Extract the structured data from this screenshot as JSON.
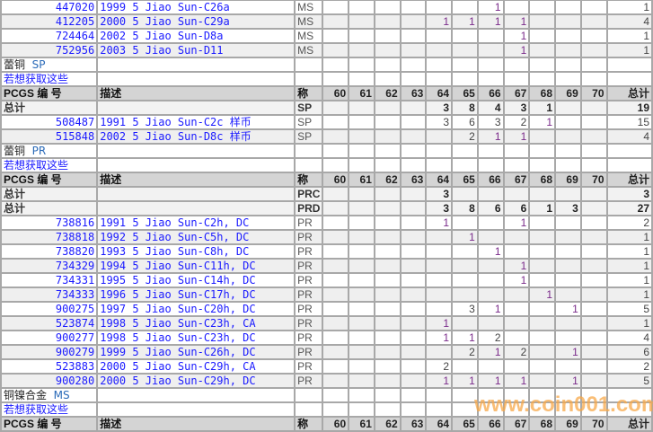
{
  "grade_headers": [
    "60",
    "61",
    "62",
    "63",
    "64",
    "65",
    "66",
    "67",
    "68",
    "69",
    "70"
  ],
  "header": {
    "code": "PCGS 编 号",
    "desc": "描述",
    "des": "称",
    "total": "总计"
  },
  "rows": [
    {
      "type": "item",
      "code": "447020",
      "desc": "1999 5 Jiao Sun-C26a",
      "des": "MS",
      "grades": {
        "66": "1"
      },
      "total": "1"
    },
    {
      "type": "item",
      "code": "412205",
      "desc": "2000 5 Jiao Sun-C29a",
      "des": "MS",
      "grades": {
        "64": "1",
        "65": "1",
        "66": "1",
        "67": "1"
      },
      "total": "4"
    },
    {
      "type": "item",
      "code": "724464",
      "desc": "2002 5 Jiao Sun-D8a",
      "des": "MS",
      "grades": {
        "67": "1"
      },
      "total": "1"
    },
    {
      "type": "item",
      "code": "752956",
      "desc": "2003 5 Jiao Sun-D11",
      "des": "MS",
      "grades": {
        "67": "1"
      },
      "total": "1"
    },
    {
      "type": "section",
      "metal": "蕾铜",
      "tag": "SP"
    },
    {
      "type": "link",
      "text": "若想获取这些"
    },
    {
      "type": "header"
    },
    {
      "type": "total",
      "label": "总计",
      "des": "SP",
      "grades": {
        "64": "3",
        "65": "8",
        "66": "4",
        "67": "3",
        "68": "1"
      },
      "total": "19"
    },
    {
      "type": "item",
      "code": "508487",
      "desc": "1991 5 Jiao Sun-C2c 样币",
      "des": "SP",
      "grades": {
        "64": "3",
        "65": "6",
        "66": "3",
        "67": "2",
        "68": "1"
      },
      "total": "15"
    },
    {
      "type": "item",
      "code": "515848",
      "desc": "2002 5 Jiao Sun-D8c 样币",
      "des": "SP",
      "grades": {
        "65": "2",
        "66": "1",
        "67": "1"
      },
      "total": "4"
    },
    {
      "type": "section",
      "metal": "蕾铜",
      "tag": "PR"
    },
    {
      "type": "link",
      "text": "若想获取这些"
    },
    {
      "type": "header"
    },
    {
      "type": "total",
      "label": "总计",
      "des": "PRC",
      "grades": {
        "64": "3"
      },
      "total": "3"
    },
    {
      "type": "total",
      "label": "总计",
      "des": "PRD",
      "grades": {
        "64": "3",
        "65": "8",
        "66": "6",
        "67": "6",
        "68": "1",
        "69": "3"
      },
      "total": "27"
    },
    {
      "type": "item",
      "code": "738816",
      "desc": "1991 5 Jiao Sun-C2h, DC",
      "des": "PR",
      "grades": {
        "64": "1",
        "67": "1"
      },
      "total": "2"
    },
    {
      "type": "item",
      "code": "738818",
      "desc": "1992 5 Jiao Sun-C5h, DC",
      "des": "PR",
      "grades": {
        "65": "1"
      },
      "total": "1"
    },
    {
      "type": "item",
      "code": "738820",
      "desc": "1993 5 Jiao Sun-C8h, DC",
      "des": "PR",
      "grades": {
        "66": "1"
      },
      "total": "1"
    },
    {
      "type": "item",
      "code": "734329",
      "desc": "1994 5 Jiao Sun-C11h, DC",
      "des": "PR",
      "grades": {
        "67": "1"
      },
      "total": "1"
    },
    {
      "type": "item",
      "code": "734331",
      "desc": "1995 5 Jiao Sun-C14h, DC",
      "des": "PR",
      "grades": {
        "67": "1"
      },
      "total": "1"
    },
    {
      "type": "item",
      "code": "734333",
      "desc": "1996 5 Jiao Sun-C17h, DC",
      "des": "PR",
      "grades": {
        "68": "1"
      },
      "total": "1"
    },
    {
      "type": "item",
      "code": "900275",
      "desc": "1997 5 Jiao Sun-C20h, DC",
      "des": "PR",
      "grades": {
        "65": "3",
        "66": "1",
        "69": "1"
      },
      "total": "5"
    },
    {
      "type": "item",
      "code": "523874",
      "desc": "1998 5 Jiao Sun-C23h, CA",
      "des": "PR",
      "grades": {
        "64": "1"
      },
      "total": "1"
    },
    {
      "type": "item",
      "code": "900277",
      "desc": "1998 5 Jiao Sun-C23h, DC",
      "des": "PR",
      "grades": {
        "64": "1",
        "65": "1",
        "66": "2"
      },
      "total": "4"
    },
    {
      "type": "item",
      "code": "900279",
      "desc": "1999 5 Jiao Sun-C26h, DC",
      "des": "PR",
      "grades": {
        "65": "2",
        "66": "1",
        "67": "2",
        "69": "1"
      },
      "total": "6"
    },
    {
      "type": "item",
      "code": "523883",
      "desc": "2000 5 Jiao Sun-C29h, CA",
      "des": "PR",
      "grades": {
        "64": "2"
      },
      "total": "2"
    },
    {
      "type": "item",
      "code": "900280",
      "desc": "2000 5 Jiao Sun-C29h, DC",
      "des": "PR",
      "grades": {
        "64": "1",
        "65": "1",
        "66": "1",
        "67": "1",
        "69": "1"
      },
      "total": "5"
    },
    {
      "type": "section",
      "metal": "铜镍合金",
      "tag": "MS"
    },
    {
      "type": "link",
      "text": "若想获取这些"
    },
    {
      "type": "header"
    }
  ],
  "watermark": "www.coin001.com",
  "colors": {
    "link": "#1a1aff",
    "header_bg": "#d4d4d4",
    "alt_row": "#efefef",
    "watermark": "#f7a94a"
  }
}
